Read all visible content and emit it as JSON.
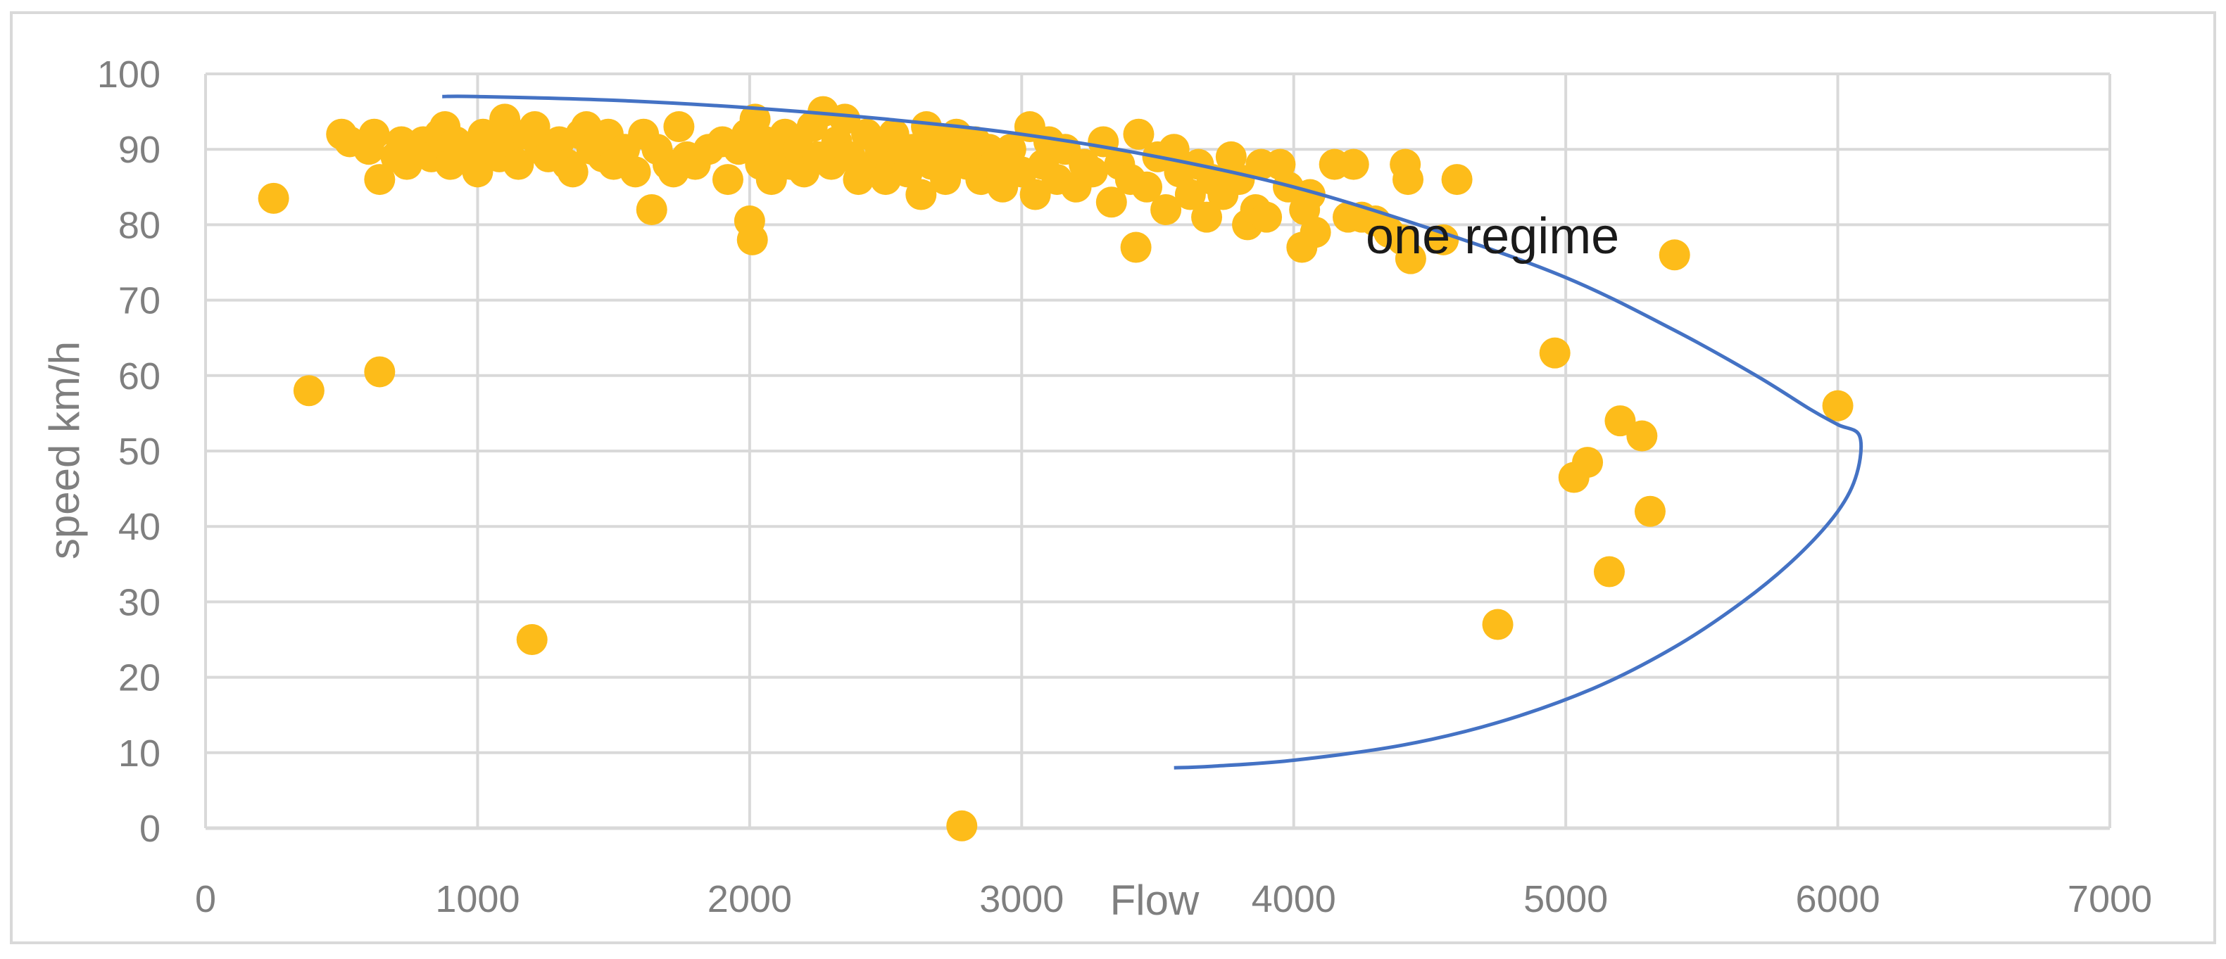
{
  "chart_data": {
    "type": "scatter",
    "title": "",
    "xlabel": "Flow",
    "ylabel": "speed km/h",
    "xlim": [
      0,
      7000
    ],
    "ylim": [
      0,
      100
    ],
    "x_ticks": [
      "0",
      "1000",
      "2000",
      "3000",
      "4000",
      "5000",
      "6000",
      "7000"
    ],
    "y_ticks": [
      "0",
      "10",
      "20",
      "30",
      "40",
      "50",
      "60",
      "70",
      "80",
      "90",
      "100"
    ],
    "grid": true,
    "legend": "none",
    "annotation": "one regime",
    "colors": {
      "points": "#FDBC1A",
      "curve": "#4472C4",
      "grid": "#D9D9D9",
      "text": "#7F7F7F"
    },
    "series": [
      {
        "kind": "points",
        "points": [
          [
            250,
            83.5
          ],
          [
            380,
            58
          ],
          [
            500,
            92
          ],
          [
            530,
            91
          ],
          [
            600,
            90
          ],
          [
            620,
            92
          ],
          [
            640,
            86
          ],
          [
            640,
            60.5
          ],
          [
            700,
            89
          ],
          [
            720,
            91
          ],
          [
            740,
            88
          ],
          [
            780,
            90
          ],
          [
            800,
            91
          ],
          [
            830,
            89
          ],
          [
            860,
            92
          ],
          [
            880,
            93
          ],
          [
            900,
            88
          ],
          [
            920,
            91
          ],
          [
            950,
            89
          ],
          [
            980,
            90
          ],
          [
            1000,
            87
          ],
          [
            1020,
            92
          ],
          [
            1050,
            90
          ],
          [
            1080,
            89
          ],
          [
            1100,
            94
          ],
          [
            1120,
            91
          ],
          [
            1150,
            88
          ],
          [
            1180,
            92
          ],
          [
            1200,
            25
          ],
          [
            1210,
            93
          ],
          [
            1230,
            90
          ],
          [
            1260,
            89
          ],
          [
            1300,
            91
          ],
          [
            1330,
            88
          ],
          [
            1350,
            87
          ],
          [
            1380,
            92
          ],
          [
            1400,
            93
          ],
          [
            1420,
            90
          ],
          [
            1460,
            89
          ],
          [
            1480,
            92
          ],
          [
            1500,
            88
          ],
          [
            1540,
            90
          ],
          [
            1580,
            87
          ],
          [
            1610,
            92
          ],
          [
            1640,
            82
          ],
          [
            1660,
            90
          ],
          [
            1700,
            88
          ],
          [
            1720,
            87
          ],
          [
            1740,
            93
          ],
          [
            1770,
            89
          ],
          [
            1800,
            88
          ],
          [
            1850,
            90
          ],
          [
            1900,
            91
          ],
          [
            1920,
            86
          ],
          [
            1960,
            90
          ],
          [
            1990,
            92
          ],
          [
            2000,
            80.5
          ],
          [
            2010,
            78
          ],
          [
            2020,
            94
          ],
          [
            2040,
            88
          ],
          [
            2060,
            91
          ],
          [
            2080,
            86
          ],
          [
            2100,
            89
          ],
          [
            2130,
            92
          ],
          [
            2150,
            88
          ],
          [
            2180,
            90
          ],
          [
            2200,
            87
          ],
          [
            2230,
            93
          ],
          [
            2250,
            89
          ],
          [
            2270,
            95
          ],
          [
            2300,
            88
          ],
          [
            2320,
            91
          ],
          [
            2350,
            94
          ],
          [
            2370,
            89
          ],
          [
            2400,
            86
          ],
          [
            2430,
            92
          ],
          [
            2460,
            88
          ],
          [
            2480,
            90
          ],
          [
            2500,
            86
          ],
          [
            2530,
            92
          ],
          [
            2560,
            89
          ],
          [
            2580,
            87
          ],
          [
            2600,
            90
          ],
          [
            2630,
            84
          ],
          [
            2650,
            93
          ],
          [
            2670,
            88
          ],
          [
            2700,
            91
          ],
          [
            2720,
            86
          ],
          [
            2750,
            89
          ],
          [
            2760,
            92
          ],
          [
            2780,
            0.3
          ],
          [
            2800,
            88
          ],
          [
            2830,
            91
          ],
          [
            2850,
            86
          ],
          [
            2880,
            90
          ],
          [
            2900,
            88
          ],
          [
            2930,
            85
          ],
          [
            2960,
            90
          ],
          [
            3000,
            87
          ],
          [
            3030,
            93
          ],
          [
            3050,
            84
          ],
          [
            3080,
            88
          ],
          [
            3100,
            91
          ],
          [
            3130,
            86
          ],
          [
            3160,
            90
          ],
          [
            3200,
            85
          ],
          [
            3230,
            88
          ],
          [
            3260,
            87
          ],
          [
            3300,
            91
          ],
          [
            3330,
            83
          ],
          [
            3360,
            88
          ],
          [
            3400,
            86
          ],
          [
            3420,
            77
          ],
          [
            3430,
            92
          ],
          [
            3460,
            85
          ],
          [
            3500,
            89
          ],
          [
            3530,
            82
          ],
          [
            3560,
            90
          ],
          [
            3580,
            87
          ],
          [
            3620,
            84
          ],
          [
            3650,
            88
          ],
          [
            3680,
            81
          ],
          [
            3700,
            86
          ],
          [
            3740,
            84
          ],
          [
            3770,
            89
          ],
          [
            3800,
            86
          ],
          [
            3830,
            80
          ],
          [
            3860,
            82
          ],
          [
            3880,
            88
          ],
          [
            3900,
            81
          ],
          [
            3950,
            88
          ],
          [
            3980,
            85
          ],
          [
            4030,
            77
          ],
          [
            4040,
            82
          ],
          [
            4060,
            84
          ],
          [
            4080,
            79
          ],
          [
            4150,
            88
          ],
          [
            4200,
            81
          ],
          [
            4220,
            88
          ],
          [
            4250,
            81
          ],
          [
            4300,
            80.5
          ],
          [
            4350,
            79
          ],
          [
            4400,
            78
          ],
          [
            4410,
            88
          ],
          [
            4420,
            86
          ],
          [
            4430,
            75.5
          ],
          [
            4550,
            78
          ],
          [
            4600,
            86
          ],
          [
            4750,
            27
          ],
          [
            4960,
            63
          ],
          [
            5030,
            46.5
          ],
          [
            5080,
            48.5
          ],
          [
            5160,
            34
          ],
          [
            5200,
            54
          ],
          [
            5280,
            52
          ],
          [
            5310,
            42
          ],
          [
            5400,
            76
          ],
          [
            6000,
            56
          ]
        ]
      },
      {
        "kind": "curve",
        "points": [
          [
            870,
            97
          ],
          [
            1000,
            97
          ],
          [
            1500,
            96.5
          ],
          [
            2000,
            95.5
          ],
          [
            2500,
            94
          ],
          [
            3000,
            92
          ],
          [
            3500,
            89
          ],
          [
            4000,
            85
          ],
          [
            4500,
            79.5
          ],
          [
            5000,
            73
          ],
          [
            5400,
            66
          ],
          [
            5700,
            60
          ],
          [
            5900,
            55.5
          ],
          [
            6000,
            53.5
          ],
          [
            6080,
            52
          ],
          [
            6070,
            47
          ],
          [
            6000,
            42
          ],
          [
            5850,
            36
          ],
          [
            5650,
            30
          ],
          [
            5400,
            24
          ],
          [
            5100,
            18.5
          ],
          [
            4750,
            14
          ],
          [
            4400,
            11
          ],
          [
            4000,
            9
          ],
          [
            3700,
            8.2
          ],
          [
            3560,
            8
          ]
        ]
      }
    ]
  }
}
